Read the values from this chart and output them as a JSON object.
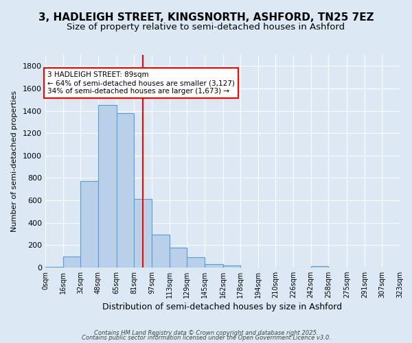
{
  "title": "3, HADLEIGH STREET, KINGSNORTH, ASHFORD, TN25 7EZ",
  "subtitle": "Size of property relative to semi-detached houses in Ashford",
  "xlabel": "Distribution of semi-detached houses by size in Ashford",
  "ylabel": "Number of semi-detached properties",
  "footer_line1": "Contains HM Land Registry data © Crown copyright and database right 2025.",
  "footer_line2": "Contains public sector information licensed under the Open Government Licence v3.0.",
  "bin_labels": [
    "0sqm",
    "16sqm",
    "32sqm",
    "48sqm",
    "65sqm",
    "81sqm",
    "97sqm",
    "113sqm",
    "129sqm",
    "145sqm",
    "162sqm",
    "178sqm",
    "194sqm",
    "210sqm",
    "226sqm",
    "242sqm",
    "258sqm",
    "275sqm",
    "291sqm",
    "307sqm",
    "323sqm"
  ],
  "bin_edges": [
    0,
    16,
    32,
    48,
    65,
    81,
    97,
    113,
    129,
    145,
    162,
    178,
    194,
    210,
    226,
    242,
    258,
    275,
    291,
    307,
    323
  ],
  "bar_values": [
    5,
    100,
    770,
    1450,
    1380,
    615,
    295,
    175,
    90,
    30,
    18,
    0,
    0,
    0,
    0,
    10,
    0,
    0,
    0,
    0
  ],
  "bar_color": "#b8d0e8",
  "bar_edge_color": "#5b9bd5",
  "vline_x": 89,
  "vline_color": "red",
  "annotation_text": "3 HADLEIGH STREET: 89sqm\n← 64% of semi-detached houses are smaller (3,127)\n34% of semi-detached houses are larger (1,673) →",
  "annotation_box_color": "white",
  "annotation_box_edge": "red",
  "ylim": [
    0,
    1900
  ],
  "background_color": "#dce9f5",
  "axes_background": "#dce9f5",
  "grid_color": "white",
  "title_fontsize": 11,
  "subtitle_fontsize": 9.5,
  "annot_fontsize": 7.5,
  "xlabel_fontsize": 9,
  "ylabel_fontsize": 8,
  "xtick_fontsize": 7,
  "ytick_fontsize": 8
}
